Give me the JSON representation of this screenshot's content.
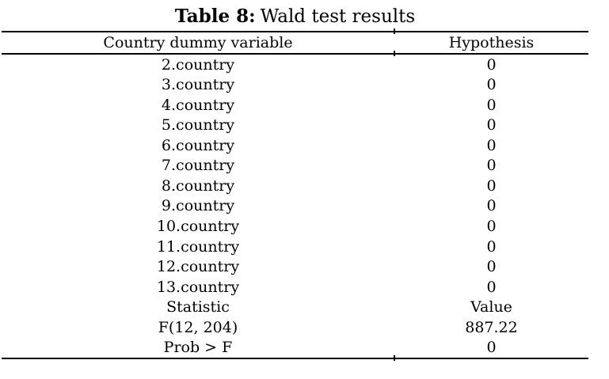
{
  "page": {
    "background": "#ffffff",
    "text_color": "#000000",
    "rule_color": "#000000"
  },
  "title": {
    "label": "Table 8:",
    "text": "Wald test results"
  },
  "table": {
    "columns": [
      "Country dummy variable",
      "Hypothesis"
    ],
    "rows": [
      [
        "2.country",
        "0"
      ],
      [
        "3.country",
        "0"
      ],
      [
        "4.country",
        "0"
      ],
      [
        "5.country",
        "0"
      ],
      [
        "6.country",
        "0"
      ],
      [
        "7.country",
        "0"
      ],
      [
        "8.country",
        "0"
      ],
      [
        "9.country",
        "0"
      ],
      [
        "10.country",
        "0"
      ],
      [
        "11.country",
        "0"
      ],
      [
        "12.country",
        "0"
      ],
      [
        "13.country",
        "0"
      ],
      [
        "Statistic",
        "Value"
      ],
      [
        "F(12, 204)",
        "887.22"
      ],
      [
        "Prob > F",
        "0"
      ]
    ]
  }
}
